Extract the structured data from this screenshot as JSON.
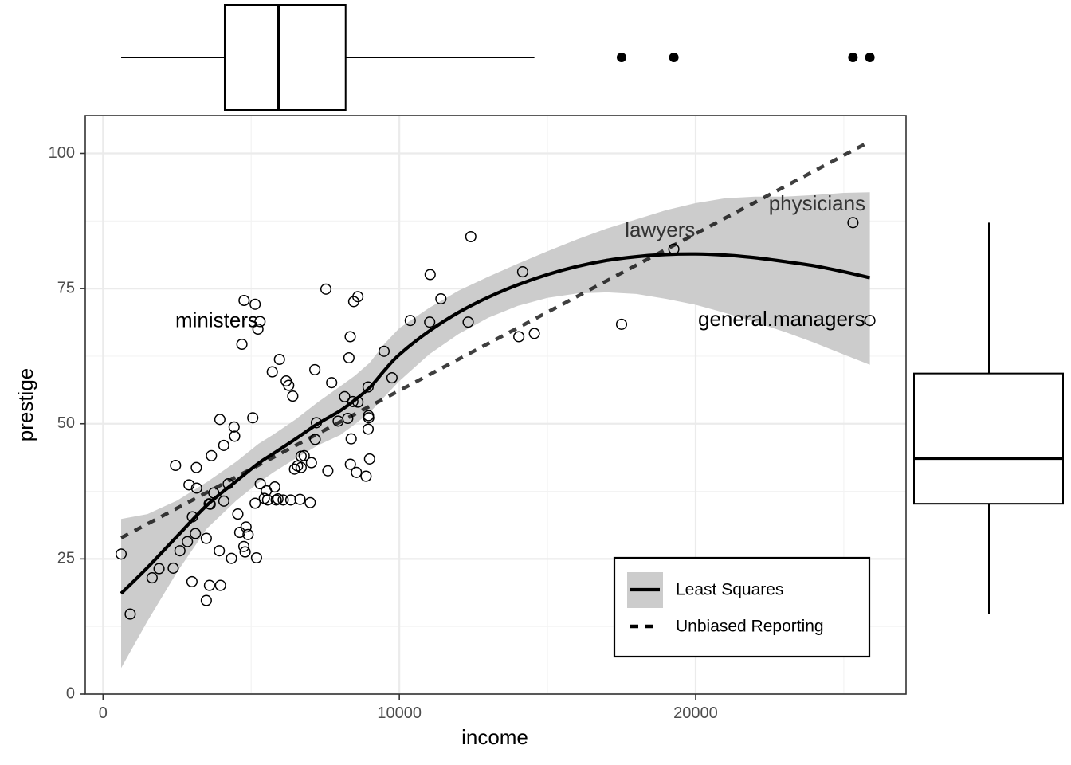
{
  "chart_data": {
    "type": "scatter",
    "xlabel": "income",
    "ylabel": "prestige",
    "xlim": [
      -600,
      27100
    ],
    "ylim": [
      0,
      107
    ],
    "x_ticks": [
      0,
      10000,
      20000
    ],
    "x_tick_labels": [
      "0",
      "10000",
      "20000"
    ],
    "y_ticks": [
      0,
      25,
      50,
      75,
      100
    ],
    "y_tick_labels": [
      "0",
      "25",
      "50",
      "75",
      "100"
    ],
    "grid": true,
    "theme": "bw",
    "points": [
      [
        611,
        25.9
      ],
      [
        918,
        14.8
      ],
      [
        1656,
        21.5
      ],
      [
        1890,
        23.2
      ],
      [
        2370,
        23.3
      ],
      [
        2448,
        42.3
      ],
      [
        2594,
        26.5
      ],
      [
        2847,
        28.2
      ],
      [
        2901,
        38.7
      ],
      [
        3000,
        20.8
      ],
      [
        3016,
        32.8
      ],
      [
        3116,
        29.7
      ],
      [
        3148,
        41.9
      ],
      [
        3161,
        38.1
      ],
      [
        3485,
        17.3
      ],
      [
        3485,
        28.8
      ],
      [
        3582,
        35.2
      ],
      [
        3593,
        20.1
      ],
      [
        3656,
        44.1
      ],
      [
        3617,
        35.1
      ],
      [
        3739,
        37.2
      ],
      [
        3923,
        26.5
      ],
      [
        3942,
        50.8
      ],
      [
        3965,
        20.1
      ],
      [
        4075,
        46.0
      ],
      [
        4076,
        35.7
      ],
      [
        4224,
        38.9
      ],
      [
        4336,
        25.1
      ],
      [
        4443,
        47.7
      ],
      [
        4424,
        49.4
      ],
      [
        4549,
        33.3
      ],
      [
        4614,
        29.9
      ],
      [
        4686,
        64.7
      ],
      [
        4753,
        27.3
      ],
      [
        4761,
        72.8
      ],
      [
        4796,
        26.3
      ],
      [
        4827,
        30.9
      ],
      [
        4893,
        29.5
      ],
      [
        5052,
        51.1
      ],
      [
        5134,
        35.3
      ],
      [
        5133,
        72.1
      ],
      [
        5179,
        25.2
      ],
      [
        5228,
        67.5
      ],
      [
        5299,
        68.9
      ],
      [
        5305,
        38.9
      ],
      [
        5443,
        36.2
      ],
      [
        5511,
        37.6
      ],
      [
        5552,
        35.9
      ],
      [
        5713,
        59.6
      ],
      [
        5844,
        35.9
      ],
      [
        5795,
        38.3
      ],
      [
        5902,
        36.1
      ],
      [
        5954,
        61.9
      ],
      [
        6079,
        35.9
      ],
      [
        6182,
        57.9
      ],
      [
        6265,
        57.1
      ],
      [
        6336,
        35.9
      ],
      [
        6403,
        55.1
      ],
      [
        6462,
        41.6
      ],
      [
        6565,
        42.2
      ],
      [
        6686,
        44.0
      ],
      [
        6686,
        41.9
      ],
      [
        6649,
        36.0
      ],
      [
        6788,
        44.1
      ],
      [
        6993,
        35.4
      ],
      [
        7031,
        42.8
      ],
      [
        7158,
        47.1
      ],
      [
        7147,
        60.0
      ],
      [
        7200,
        50.2
      ],
      [
        7523,
        74.9
      ],
      [
        7585,
        41.3
      ],
      [
        7716,
        57.6
      ],
      [
        7935,
        50.5
      ],
      [
        8153,
        55.0
      ],
      [
        8258,
        51.0
      ],
      [
        8341,
        66.1
      ],
      [
        8299,
        62.2
      ],
      [
        8348,
        42.5
      ],
      [
        8375,
        47.2
      ],
      [
        8432,
        54.1
      ],
      [
        8459,
        72.6
      ],
      [
        8599,
        73.5
      ],
      [
        8552,
        41.0
      ],
      [
        8604,
        54.0
      ],
      [
        8876,
        40.3
      ],
      [
        8945,
        56.8
      ],
      [
        8946,
        49.0
      ],
      [
        8957,
        51.5
      ],
      [
        8966,
        51.1
      ],
      [
        8995,
        43.5
      ],
      [
        9486,
        63.4
      ],
      [
        9751,
        58.5
      ],
      [
        10368,
        69.1
      ],
      [
        11023,
        68.8
      ],
      [
        11040,
        77.6
      ],
      [
        11402,
        73.1
      ],
      [
        12323,
        68.8
      ],
      [
        12412,
        84.6
      ],
      [
        14032,
        66.1
      ],
      [
        14163,
        78.1
      ],
      [
        14558,
        66.7
      ],
      [
        17498,
        68.4
      ],
      [
        19263,
        82.3
      ],
      [
        25308,
        87.2
      ],
      [
        25879,
        69.1
      ]
    ],
    "smooth_fit": {
      "name": "Least Squares",
      "x": [
        611,
        1500,
        2500,
        3500,
        4500,
        5250,
        5750,
        6500,
        7250,
        8000,
        8500,
        9000,
        9500,
        10000,
        11000,
        12000,
        13000,
        14000,
        15000,
        16000,
        17000,
        18000,
        19000,
        20000,
        21000,
        22000,
        23000,
        24000,
        25000,
        25879
      ],
      "y": [
        18.6,
        23.4,
        29.2,
        34.9,
        39.4,
        42.7,
        44.5,
        47.2,
        50.0,
        52.4,
        54.4,
        56.7,
        59.9,
        62.8,
        67.1,
        70.6,
        73.4,
        75.7,
        77.6,
        79.1,
        80.2,
        80.9,
        81.3,
        81.4,
        81.2,
        80.7,
        80.0,
        79.2,
        78.1,
        77.0
      ],
      "band_lower": [
        4.8,
        13.5,
        22.6,
        30.6,
        35.8,
        39.1,
        41.0,
        43.6,
        46.0,
        47.9,
        49.9,
        52.1,
        55.0,
        57.9,
        62.8,
        66.6,
        69.6,
        71.8,
        73.3,
        74.1,
        74.3,
        74.0,
        73.1,
        72.0,
        70.5,
        68.8,
        67.0,
        65.0,
        62.8,
        60.9
      ],
      "band_upper": [
        32.4,
        33.3,
        35.8,
        39.2,
        43.0,
        46.3,
        48.0,
        50.8,
        54.0,
        56.9,
        58.9,
        61.3,
        64.8,
        67.7,
        71.4,
        74.6,
        77.2,
        79.6,
        81.9,
        84.1,
        86.1,
        87.8,
        89.5,
        90.8,
        91.7,
        92.0,
        92.0,
        92.3,
        92.7,
        92.8
      ]
    },
    "reference_line": {
      "name": "Unbiased Reporting",
      "x": [
        611,
        25879
      ],
      "y": [
        28.9,
        102.2
      ]
    },
    "annotations": [
      {
        "text": "ministers",
        "x": 3838,
        "y": 68.9,
        "color": "#000000"
      },
      {
        "text": "lawyers",
        "x": 18798,
        "y": 85.6,
        "color": "#333333"
      },
      {
        "text": "physicians",
        "x": 24100,
        "y": 90.5,
        "color": "#333333"
      },
      {
        "text": "general.managers",
        "x": 22900,
        "y": 69.1,
        "color": "#000000"
      }
    ],
    "legend": {
      "position": "bottom-right",
      "entries": [
        {
          "label": "Least Squares",
          "style": "solid"
        },
        {
          "label": "Unbiased Reporting",
          "style": "dashed"
        }
      ]
    },
    "marginal_boxplot_x": {
      "whisker_low": 611,
      "q1": 4106,
      "median": 5930,
      "q3": 8187,
      "whisker_high": 14558,
      "outliers": [
        17498,
        19263,
        25308,
        25879
      ]
    },
    "marginal_boxplot_y": {
      "whisker_low": 14.8,
      "q1": 35.2,
      "median": 43.6,
      "q3": 59.3,
      "whisker_high": 87.2,
      "outliers": []
    },
    "colors": {
      "band": "#cccccc",
      "fit": "#000000",
      "reference": "#000000",
      "grid_major": "#ebebeb",
      "grid_minor": "#f3f3f3",
      "panel_border": "#333333",
      "points": "#000000"
    }
  }
}
